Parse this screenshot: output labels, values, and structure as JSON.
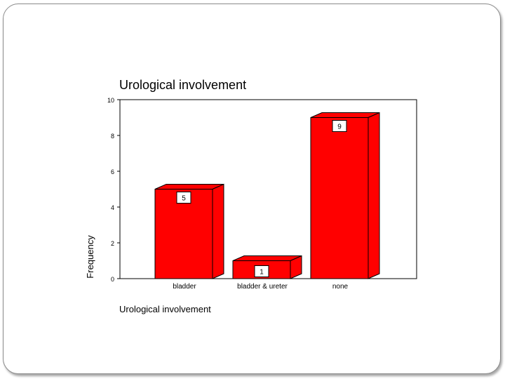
{
  "chart_data": {
    "type": "bar",
    "title": "Urological involvement",
    "xlabel": "Urological involvement",
    "ylabel": "Frequency",
    "categories": [
      "bladder",
      "bladder & ureter",
      "none"
    ],
    "values": [
      5,
      1,
      9
    ],
    "data_labels": [
      "5",
      "1",
      "9"
    ],
    "ylim": [
      0,
      10
    ],
    "yticks": [
      "0",
      "2",
      "4",
      "6",
      "8",
      "10"
    ],
    "bar_color": "#ff0000",
    "grid": false,
    "style": "3d-bar"
  }
}
